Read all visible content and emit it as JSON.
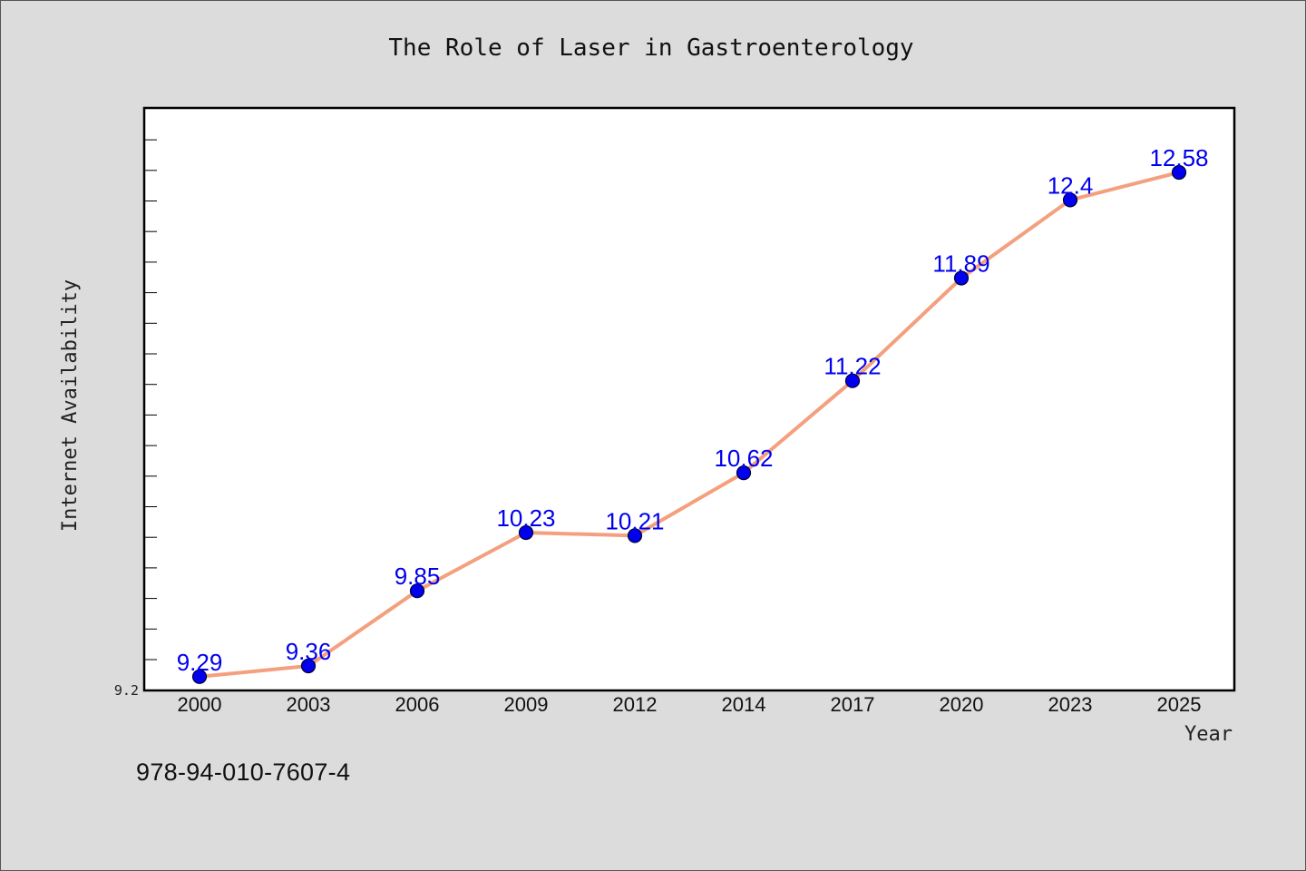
{
  "chart_data": {
    "type": "line",
    "title": "The Role of Laser in Gastroenterology",
    "xlabel": "Year",
    "ylabel": "Internet Availability",
    "categories": [
      "2000",
      "2003",
      "2006",
      "2009",
      "2012",
      "2014",
      "2017",
      "2020",
      "2023",
      "2025"
    ],
    "series": [
      {
        "values": [
          9.29,
          9.36,
          9.85,
          10.23,
          10.21,
          10.62,
          11.22,
          11.89,
          12.4,
          12.58
        ]
      }
    ],
    "data_labels": [
      "9.29",
      "9.36",
      "9.85",
      "10.23",
      "10.21",
      "10.62",
      "11.22",
      "11.89",
      "12.4",
      "12.58"
    ],
    "y_tick_labels": [
      "9.2"
    ],
    "ylim": [
      9.2,
      13.0
    ],
    "grid": false,
    "legend": "none",
    "colors": {
      "line": "#f4a07e",
      "marker": "#0000ee",
      "marker_edge": "#000033",
      "data_label": "#0000ee",
      "plot_background": "#ffffff",
      "page_background": "#dcdcdc"
    }
  },
  "footer": {
    "code": "978-94-010-7607-4"
  }
}
